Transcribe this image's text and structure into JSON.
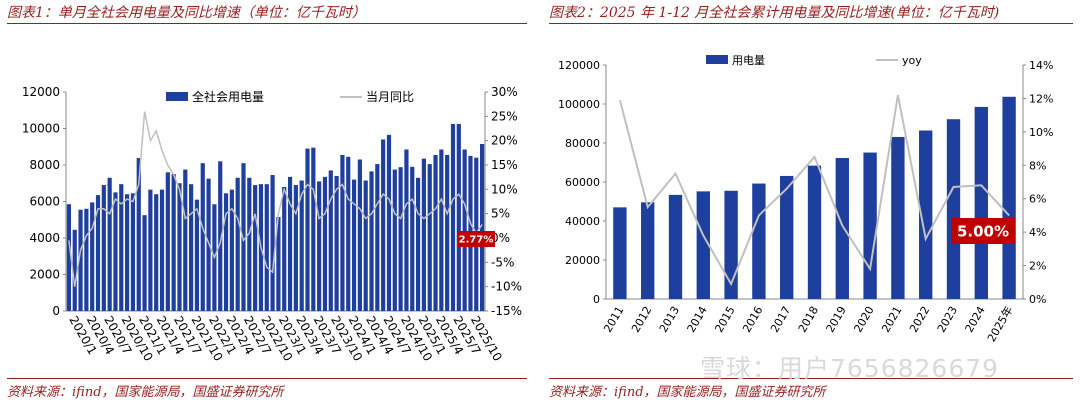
{
  "captions": {
    "left": "图表1：单月全社会用电量及同比增速（单位：亿千瓦时）",
    "right": "图表2：2025 年 1-12 月全社会累计用电量及同比增速(单位：亿千瓦时)"
  },
  "sources": {
    "left": "资料来源：ifind，国家能源局，国盛证券研究所",
    "right": "资料来源：ifind，国家能源局，国盛证券研究所"
  },
  "watermark": "雪球：用户7656826679",
  "colors": {
    "bar": "#1f3f9e",
    "line": "#c0c0c0",
    "callout": "#c00000",
    "caption": "#9b1c1c"
  },
  "chart_data": [
    {
      "type": "bar",
      "legend": [
        "全社会用电量",
        "当月同比"
      ],
      "legend_position": "top",
      "x_tick_labels": [
        "2020/1",
        "2020/4",
        "2020/7",
        "2020/10",
        "2021/1",
        "2021/4",
        "2021/7",
        "2021/10",
        "2022/1",
        "2022/4",
        "2022/7",
        "2022/10",
        "2023/1",
        "2023/4",
        "2023/7",
        "2023/10",
        "2024/1",
        "2024/4",
        "2024/7",
        "2024/10",
        "2025/1",
        "2025/4",
        "2025/7",
        "2025/10"
      ],
      "bar_values": [
        5850,
        4450,
        5550,
        5600,
        5950,
        6350,
        6900,
        7300,
        6500,
        6950,
        6400,
        6450,
        8380,
        5250,
        6650,
        6400,
        6650,
        7600,
        7500,
        7000,
        7750,
        6950,
        6100,
        8100,
        7250,
        5850,
        8200,
        6450,
        6650,
        7300,
        8100,
        7300,
        6900,
        6950,
        6950,
        7450,
        5150,
        6800,
        7350,
        6900,
        7150,
        8900,
        8950,
        7100,
        7350,
        7700,
        7400,
        8550,
        8450,
        7200,
        8300,
        7150,
        7650,
        8050,
        9400,
        9650,
        7750,
        7880,
        8850,
        7900,
        7300,
        8350,
        8050,
        8550,
        8850,
        8550,
        10250,
        10250,
        8850,
        8500,
        8400,
        9150
      ],
      "bar_ylim": [
        0,
        12000
      ],
      "line_values": [
        -0.5,
        -10,
        -2.5,
        0.5,
        2,
        6,
        6,
        5,
        8,
        7,
        8,
        7.5,
        11,
        26,
        20,
        22,
        18,
        15,
        13,
        10,
        4,
        5,
        6,
        2,
        -1,
        -4,
        -1,
        5,
        6,
        4,
        -0.5,
        1,
        5,
        -2,
        -6,
        -7,
        5,
        10,
        7,
        5,
        9,
        11,
        10,
        4,
        5,
        8,
        10,
        11,
        8,
        7,
        6,
        4,
        5,
        7,
        9,
        8,
        5,
        4,
        7,
        8,
        5,
        4,
        5,
        6,
        8,
        5,
        8,
        9,
        7,
        3,
        1,
        2.77
      ],
      "line_ylim": [
        -15,
        30
      ],
      "y_tick_labels": [
        "0",
        "2000",
        "4000",
        "6000",
        "8000",
        "10000",
        "12000"
      ],
      "y2_tick_labels": [
        "-15%",
        "-10%",
        "-5%",
        "0%",
        "5%",
        "10%",
        "15%",
        "20%",
        "25%",
        "30%"
      ],
      "callout": "2.77%"
    },
    {
      "type": "bar",
      "legend": [
        "用电量",
        "yoy"
      ],
      "legend_position": "top",
      "categories": [
        "2011",
        "2012",
        "2013",
        "2014",
        "2015",
        "2016",
        "2017",
        "2018",
        "2019",
        "2020",
        "2021",
        "2022",
        "2023",
        "2024",
        "2025年"
      ],
      "bar_values": [
        47000,
        49600,
        53400,
        55200,
        55500,
        59200,
        63100,
        68400,
        72300,
        75100,
        83100,
        86400,
        92200,
        98500,
        103700
      ],
      "bar_ylim": [
        0,
        120000
      ],
      "line_values": [
        11.9,
        5.5,
        7.5,
        3.8,
        0.9,
        5.0,
        6.6,
        8.5,
        4.4,
        1.8,
        12.2,
        3.6,
        6.7,
        6.8,
        5.0
      ],
      "line_ylim": [
        0,
        14
      ],
      "y_tick_labels": [
        "0",
        "20000",
        "40000",
        "60000",
        "80000",
        "100000",
        "120000"
      ],
      "y2_tick_labels": [
        "0%",
        "2%",
        "4%",
        "6%",
        "8%",
        "10%",
        "12%",
        "14%"
      ],
      "callout": "5.00%"
    }
  ]
}
